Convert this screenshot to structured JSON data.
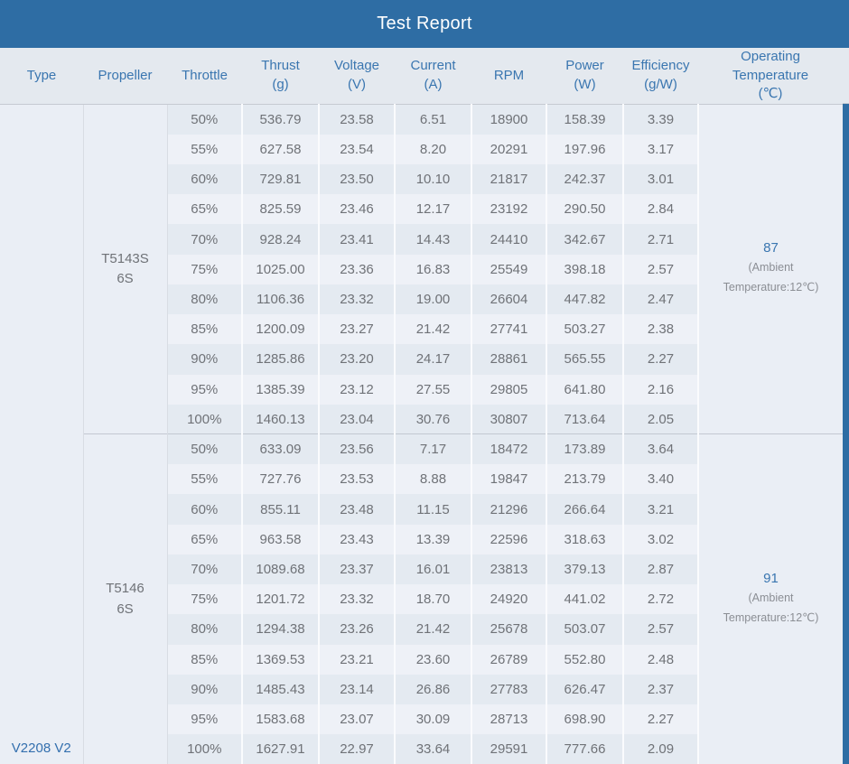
{
  "chart_data": {
    "type": "table",
    "title": "Test Report",
    "columns": [
      "Type",
      "Propeller",
      "Throttle",
      "Thrust\n(g)",
      "Voltage\n(V)",
      "Current\n(A)",
      "RPM",
      "Power\n(W)",
      "Efficiency\n(g/W)",
      "Operating\nTemperature\n(℃)"
    ],
    "motor_type": "V2208 V2",
    "groups": [
      {
        "propeller": "T5143S\n6S",
        "temperature": "87",
        "ambient_note": "(Ambient Temperature:12℃)",
        "rows": [
          [
            "50%",
            "536.79",
            "23.58",
            "6.51",
            "18900",
            "158.39",
            "3.39"
          ],
          [
            "55%",
            "627.58",
            "23.54",
            "8.20",
            "20291",
            "197.96",
            "3.17"
          ],
          [
            "60%",
            "729.81",
            "23.50",
            "10.10",
            "21817",
            "242.37",
            "3.01"
          ],
          [
            "65%",
            "825.59",
            "23.46",
            "12.17",
            "23192",
            "290.50",
            "2.84"
          ],
          [
            "70%",
            "928.24",
            "23.41",
            "14.43",
            "24410",
            "342.67",
            "2.71"
          ],
          [
            "75%",
            "1025.00",
            "23.36",
            "16.83",
            "25549",
            "398.18",
            "2.57"
          ],
          [
            "80%",
            "1106.36",
            "23.32",
            "19.00",
            "26604",
            "447.82",
            "2.47"
          ],
          [
            "85%",
            "1200.09",
            "23.27",
            "21.42",
            "27741",
            "503.27",
            "2.38"
          ],
          [
            "90%",
            "1285.86",
            "23.20",
            "24.17",
            "28861",
            "565.55",
            "2.27"
          ],
          [
            "95%",
            "1385.39",
            "23.12",
            "27.55",
            "29805",
            "641.80",
            "2.16"
          ],
          [
            "100%",
            "1460.13",
            "23.04",
            "30.76",
            "30807",
            "713.64",
            "2.05"
          ]
        ]
      },
      {
        "propeller": "T5146\n6S",
        "temperature": "91",
        "ambient_note": "(Ambient Temperature:12℃)",
        "rows": [
          [
            "50%",
            "633.09",
            "23.56",
            "7.17",
            "18472",
            "173.89",
            "3.64"
          ],
          [
            "55%",
            "727.76",
            "23.53",
            "8.88",
            "19847",
            "213.79",
            "3.40"
          ],
          [
            "60%",
            "855.11",
            "23.48",
            "11.15",
            "21296",
            "266.64",
            "3.21"
          ],
          [
            "65%",
            "963.58",
            "23.43",
            "13.39",
            "22596",
            "318.63",
            "3.02"
          ],
          [
            "70%",
            "1089.68",
            "23.37",
            "16.01",
            "23813",
            "379.13",
            "2.87"
          ],
          [
            "75%",
            "1201.72",
            "23.32",
            "18.70",
            "24920",
            "441.02",
            "2.72"
          ],
          [
            "80%",
            "1294.38",
            "23.26",
            "21.42",
            "25678",
            "503.07",
            "2.57"
          ],
          [
            "85%",
            "1369.53",
            "23.21",
            "23.60",
            "26789",
            "552.80",
            "2.48"
          ],
          [
            "90%",
            "1485.43",
            "23.14",
            "26.86",
            "27783",
            "626.47",
            "2.37"
          ],
          [
            "95%",
            "1583.68",
            "23.07",
            "30.09",
            "28713",
            "698.90",
            "2.27"
          ],
          [
            "100%",
            "1627.91",
            "22.97",
            "33.64",
            "29591",
            "777.66",
            "2.09"
          ]
        ]
      }
    ]
  },
  "colors": {
    "banner_blue": "#2e6da4",
    "header_bg": "#e4e9ef",
    "header_text_blue": "#3a76b0",
    "accent_blue": "#336fae",
    "row_stripe_dark": "#e4eaf1",
    "row_stripe_light": "#eef1f7",
    "merged_cell_bg": "#eaeef5",
    "data_text_gray": "#6f7277"
  }
}
